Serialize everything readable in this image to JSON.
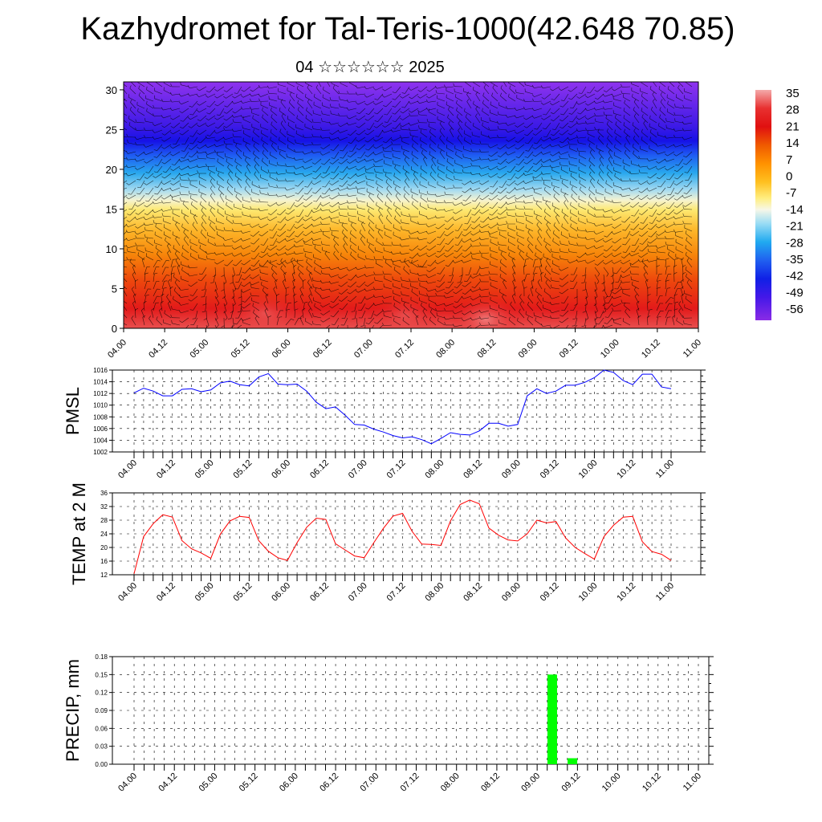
{
  "header": {
    "title": "Kazhydromet for Tal-Teris-1000(42.648 70.85)",
    "subtitle": "04 ☆☆☆☆☆☆ 2025"
  },
  "colors": {
    "pmsl_line": "#0000ff",
    "temp_line": "#ff0000",
    "precip_bar": "#00ff00",
    "wind_barbs": "#000000"
  },
  "colorbar": {
    "labels": [
      "35",
      "28",
      "21",
      "14",
      "7",
      "0",
      "-7",
      "-14",
      "-21",
      "-28",
      "-35",
      "-42",
      "-49",
      "-56"
    ],
    "stops": [
      "#f4aaaa",
      "#e83030",
      "#e01010",
      "#f05a00",
      "#ff9200",
      "#ffc020",
      "#ffee80",
      "#f7f7e8",
      "#9adcf4",
      "#20aaf0",
      "#2060f0",
      "#1020e6",
      "#4418e8",
      "#8a2be6"
    ]
  },
  "chart_data": [
    {
      "type": "heatmap",
      "title": "",
      "xlabel": "",
      "ylabel": "",
      "x_ticks": [
        "04.00",
        "04.12",
        "05.00",
        "05.12",
        "06.00",
        "06.12",
        "07.00",
        "07.12",
        "08.00",
        "08.12",
        "09.00",
        "09.12",
        "10.00",
        "10.12",
        "11.00"
      ],
      "y_ticks": [
        "0",
        "5",
        "10",
        "15",
        "20",
        "25",
        "30"
      ],
      "ylim": [
        0,
        31
      ],
      "description_values": "temperature shading with wind barbs"
    },
    {
      "type": "line",
      "ylabel": "PMSL",
      "ylim": [
        1002,
        1016
      ],
      "y_ticks": [
        "1002",
        "1004",
        "1006",
        "1008",
        "1010",
        "1012",
        "1014",
        "1016"
      ],
      "x_ticks": [
        "04.00",
        "04.12",
        "05.00",
        "05.12",
        "06.00",
        "06.12",
        "07.00",
        "07.12",
        "08.00",
        "08.12",
        "09.00",
        "09.12",
        "10.00",
        "10.12",
        "11.00"
      ],
      "x_step_hours": 3,
      "values": [
        1012.1,
        1012.9,
        1012.4,
        1011.6,
        1011.6,
        1012.7,
        1012.8,
        1012.3,
        1012.6,
        1013.8,
        1014.1,
        1013.5,
        1013.3,
        1014.8,
        1015.4,
        1013.6,
        1013.5,
        1013.6,
        1012.4,
        1010.5,
        1009.4,
        1009.7,
        1008.3,
        1006.7,
        1006.6,
        1005.9,
        1005.4,
        1004.8,
        1004.4,
        1004.6,
        1004.1,
        1003.4,
        1004.3,
        1005.3,
        1005.0,
        1004.9,
        1005.6,
        1006.9,
        1006.9,
        1006.4,
        1006.7,
        1011.6,
        1012.8,
        1012.0,
        1012.4,
        1013.4,
        1013.4,
        1013.9,
        1014.7,
        1016.0,
        1015.6,
        1014.2,
        1013.5,
        1015.3,
        1015.3,
        1013.1,
        1012.8
      ]
    },
    {
      "type": "line",
      "ylabel": "TEMP at 2 M",
      "ylim": [
        12,
        36
      ],
      "y_ticks": [
        "12",
        "16",
        "20",
        "24",
        "28",
        "32",
        "36"
      ],
      "x_ticks": [
        "04.00",
        "04.12",
        "05.00",
        "05.12",
        "06.00",
        "06.12",
        "07.00",
        "07.12",
        "08.00",
        "08.12",
        "09.00",
        "09.12",
        "10.00",
        "10.12",
        "11.00"
      ],
      "x_step_hours": 3,
      "values": [
        12.3,
        23.2,
        27.0,
        29.6,
        28.9,
        22.0,
        19.6,
        18.4,
        16.8,
        23.9,
        27.8,
        29.1,
        28.8,
        22.0,
        18.9,
        17.0,
        16.2,
        21.4,
        25.9,
        28.6,
        28.2,
        21.1,
        19.3,
        17.5,
        17.0,
        21.4,
        25.6,
        29.2,
        30.0,
        24.7,
        21.0,
        20.9,
        20.6,
        27.8,
        32.6,
        33.9,
        32.8,
        25.7,
        23.6,
        22.2,
        21.9,
        24.0,
        28.0,
        27.2,
        27.6,
        22.8,
        20.0,
        18.2,
        16.6,
        23.2,
        26.5,
        28.9,
        29.1,
        21.7,
        18.8,
        18.0,
        16.2
      ]
    },
    {
      "type": "bar",
      "ylabel": "PRECIP, mm",
      "ylim": [
        0,
        0.18
      ],
      "y_ticks": [
        "0.00",
        "0.03",
        "0.06",
        "0.09",
        "0.12",
        "0.15",
        "0.18"
      ],
      "x_ticks": [
        "04.00",
        "04.12",
        "05.00",
        "05.12",
        "06.00",
        "06.12",
        "07.00",
        "07.12",
        "08.00",
        "08.12",
        "09.00",
        "09.12",
        "10.00",
        "10.12",
        "11.00"
      ],
      "x_step_hours": 3,
      "values": [
        0,
        0,
        0,
        0,
        0,
        0,
        0,
        0,
        0,
        0,
        0,
        0,
        0,
        0,
        0,
        0,
        0,
        0,
        0,
        0,
        0,
        0,
        0,
        0,
        0,
        0,
        0,
        0,
        0,
        0,
        0,
        0,
        0,
        0,
        0,
        0,
        0,
        0,
        0,
        0,
        0,
        0.15,
        0,
        0.01,
        0,
        0,
        0,
        0,
        0,
        0,
        0,
        0,
        0,
        0,
        0,
        0
      ]
    }
  ]
}
